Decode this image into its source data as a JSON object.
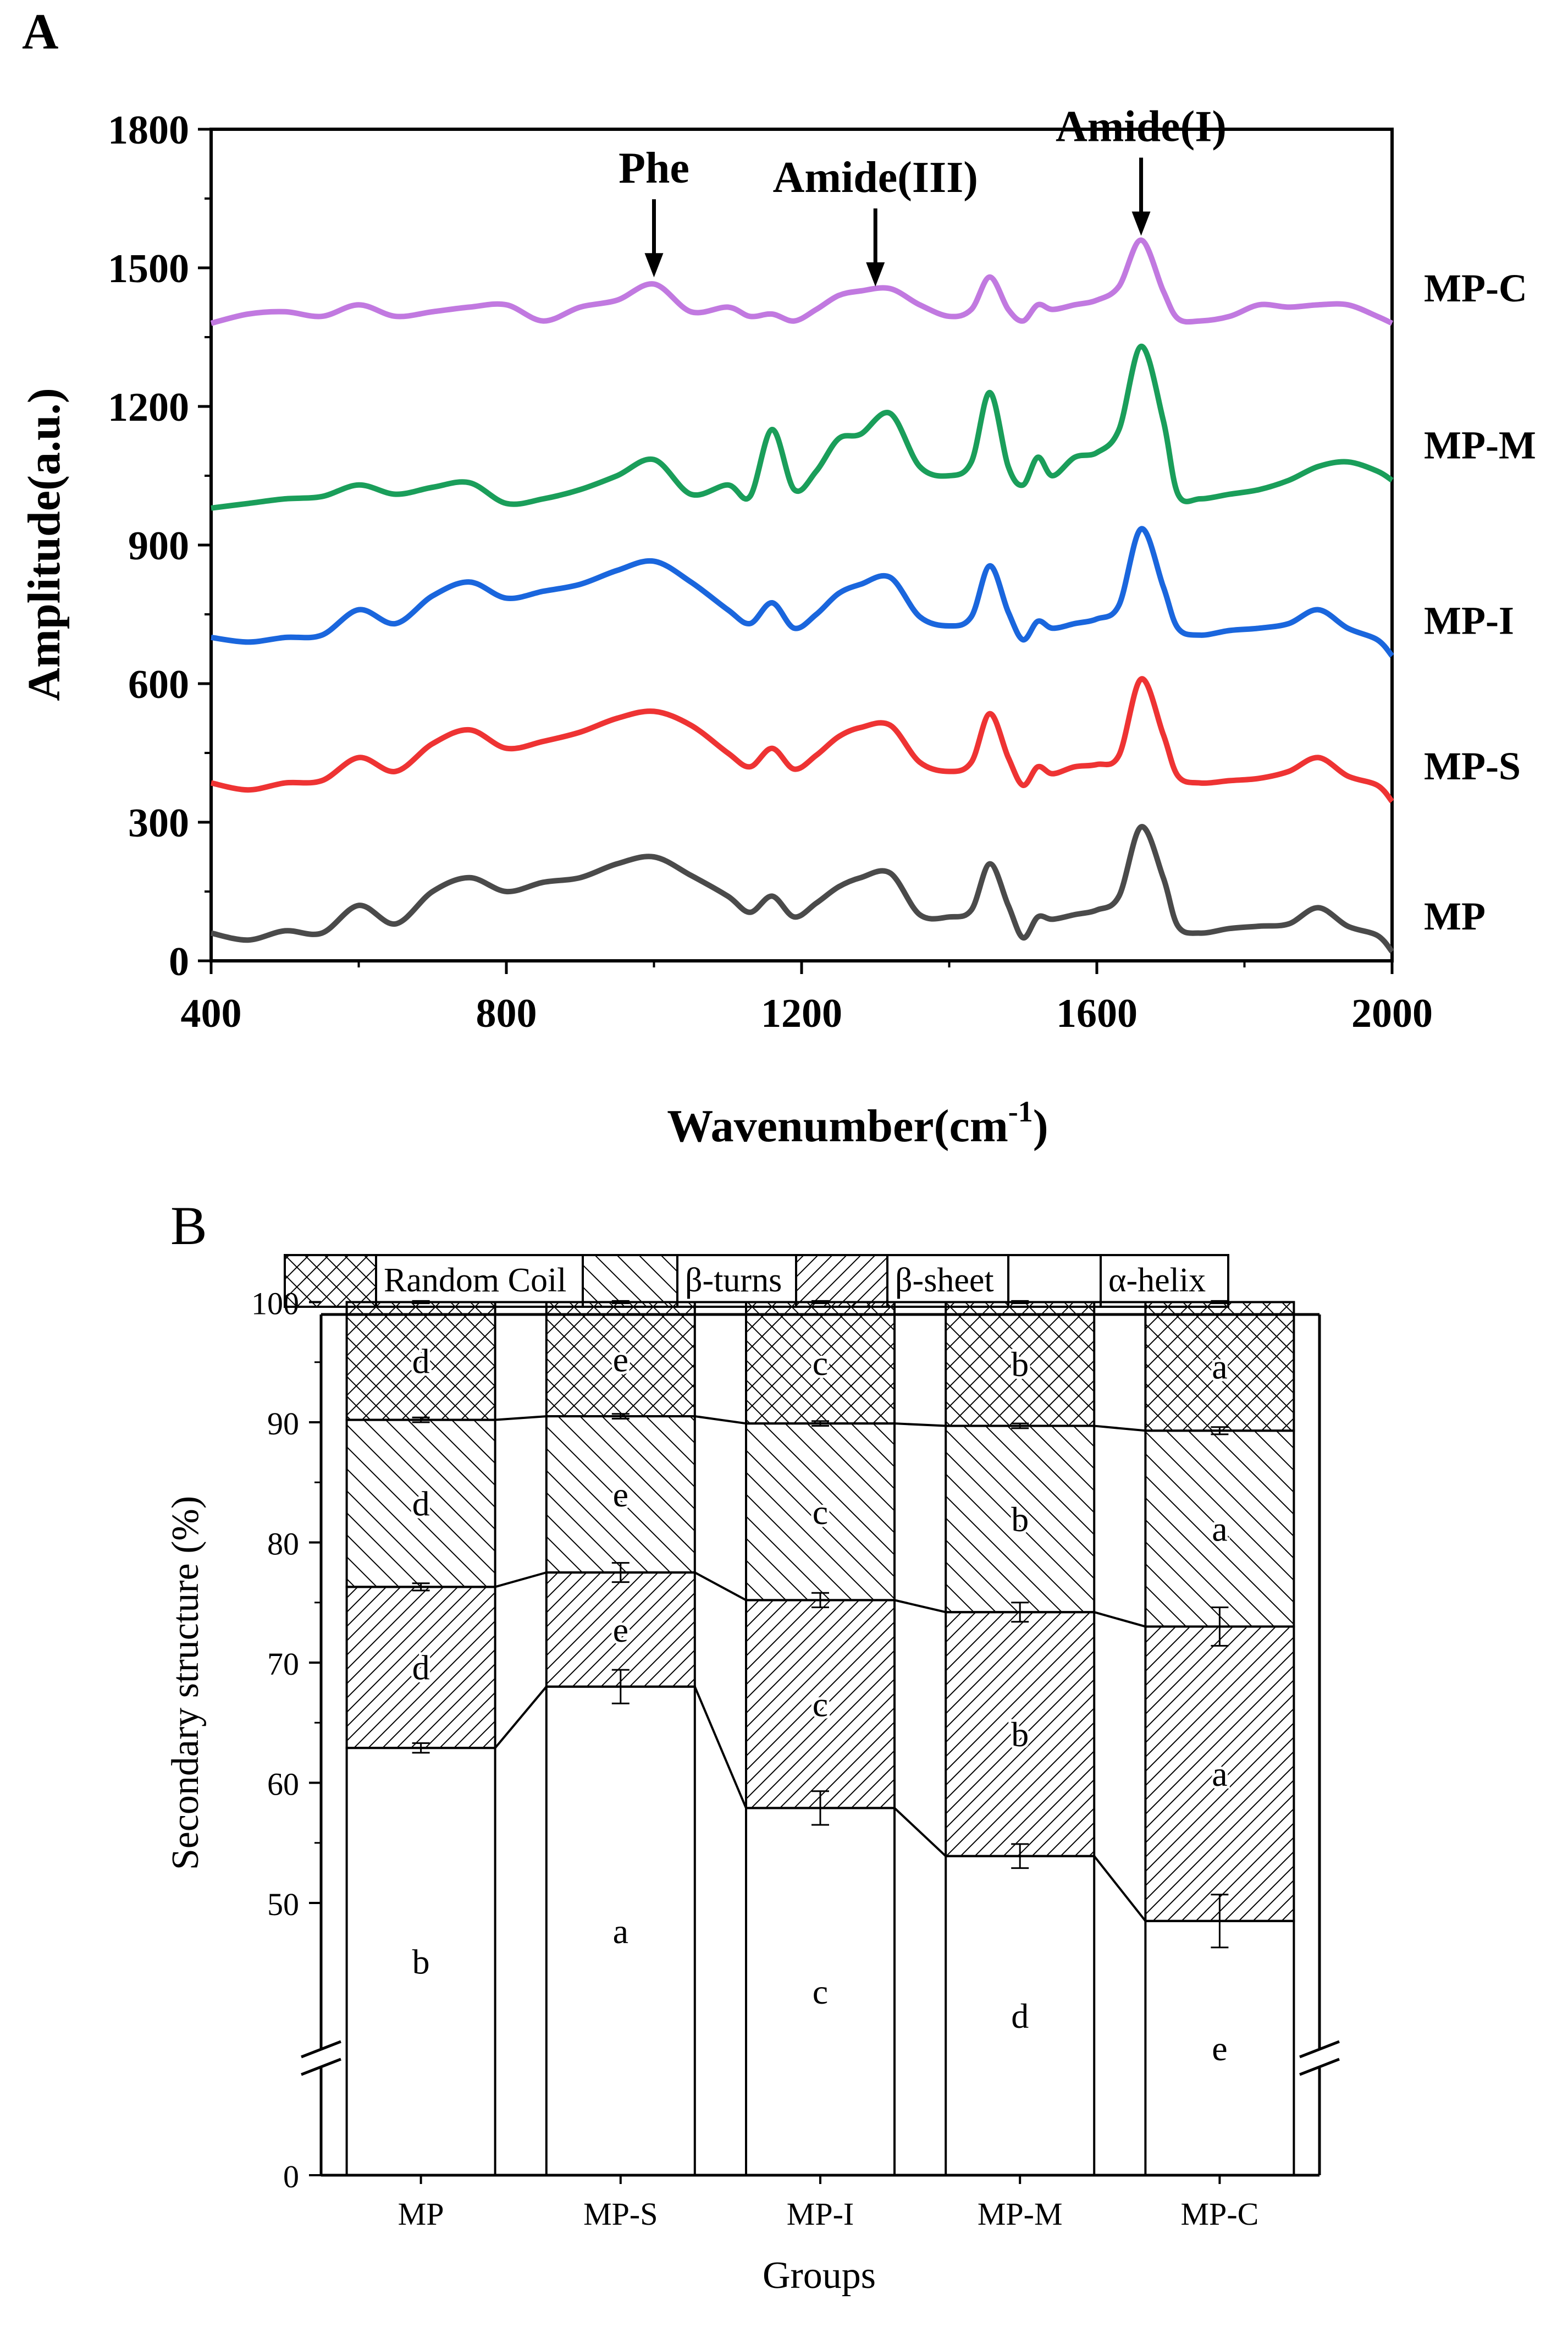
{
  "chart_data": [
    {
      "panel": "A",
      "type": "line",
      "xlabel": "Wavenumber(cm",
      "xlabel_sup": "-1",
      "xlabel_close": ")",
      "ylabel": "Amplitude(a.u.)",
      "xlim": [
        400,
        2000
      ],
      "ylim": [
        0,
        1800
      ],
      "xticks": [
        "400",
        "800",
        "1200",
        "1600",
        "2000"
      ],
      "yticks": [
        "0",
        "300",
        "600",
        "900",
        "1200",
        "1500",
        "1800"
      ],
      "annotations": [
        {
          "label": "Phe",
          "x": 1000,
          "y": 1470
        },
        {
          "label": "Amide(III)",
          "x": 1300,
          "y": 1450
        },
        {
          "label": "Amide(I)",
          "x": 1660,
          "y": 1560
        }
      ],
      "x": [
        400,
        450,
        500,
        550,
        600,
        650,
        700,
        750,
        800,
        850,
        900,
        950,
        1000,
        1050,
        1100,
        1130,
        1160,
        1190,
        1220,
        1250,
        1280,
        1320,
        1360,
        1400,
        1430,
        1455,
        1480,
        1500,
        1520,
        1540,
        1570,
        1600,
        1630,
        1660,
        1690,
        1710,
        1740,
        1780,
        1820,
        1860,
        1900,
        1940,
        1980,
        2000
      ],
      "series": [
        {
          "name": "MP",
          "color": "#4a4a4a",
          "values": [
            60,
            45,
            65,
            60,
            120,
            80,
            150,
            180,
            150,
            170,
            180,
            210,
            225,
            185,
            140,
            105,
            140,
            95,
            125,
            160,
            180,
            190,
            100,
            95,
            110,
            210,
            120,
            50,
            95,
            90,
            100,
            110,
            140,
            290,
            180,
            75,
            60,
            70,
            75,
            80,
            115,
            75,
            55,
            20
          ]
        },
        {
          "name": "MP-S",
          "color": "#ee3333",
          "values": [
            385,
            370,
            385,
            390,
            440,
            410,
            470,
            500,
            460,
            475,
            495,
            525,
            540,
            510,
            450,
            420,
            460,
            415,
            445,
            485,
            505,
            510,
            430,
            410,
            430,
            535,
            440,
            380,
            420,
            405,
            420,
            425,
            445,
            610,
            490,
            400,
            385,
            390,
            395,
            410,
            440,
            400,
            380,
            345
          ]
        },
        {
          "name": "MP-I",
          "color": "#1a66dd",
          "values": [
            700,
            690,
            700,
            705,
            760,
            730,
            790,
            820,
            785,
            800,
            815,
            845,
            865,
            820,
            760,
            730,
            775,
            720,
            750,
            795,
            815,
            830,
            745,
            725,
            745,
            855,
            755,
            695,
            735,
            720,
            730,
            740,
            770,
            935,
            810,
            720,
            705,
            715,
            720,
            730,
            760,
            720,
            695,
            660
          ]
        },
        {
          "name": "MP-M",
          "color": "#1a9e5a",
          "values": [
            980,
            990,
            1000,
            1005,
            1030,
            1010,
            1025,
            1035,
            990,
            1000,
            1020,
            1050,
            1085,
            1010,
            1030,
            1005,
            1150,
            1020,
            1060,
            1130,
            1140,
            1185,
            1070,
            1050,
            1080,
            1230,
            1070,
            1030,
            1090,
            1050,
            1090,
            1100,
            1150,
            1330,
            1170,
            1010,
            1000,
            1010,
            1020,
            1040,
            1070,
            1080,
            1060,
            1040
          ]
        },
        {
          "name": "MP-C",
          "color": "#c179e0",
          "values": [
            1380,
            1400,
            1405,
            1395,
            1420,
            1395,
            1405,
            1415,
            1420,
            1385,
            1415,
            1430,
            1465,
            1405,
            1415,
            1395,
            1400,
            1385,
            1410,
            1440,
            1450,
            1455,
            1420,
            1395,
            1410,
            1480,
            1410,
            1385,
            1420,
            1410,
            1420,
            1430,
            1460,
            1560,
            1450,
            1390,
            1385,
            1395,
            1420,
            1415,
            1420,
            1420,
            1395,
            1380
          ]
        }
      ]
    },
    {
      "panel": "B",
      "type": "bar",
      "stacked": true,
      "xlabel": "Groups",
      "ylabel": "Secondary structure (%)",
      "ylim": [
        0,
        100
      ],
      "axis_break": [
        40,
        50
      ],
      "yticks": [
        "0",
        "50",
        "60",
        "70",
        "80",
        "90",
        "100"
      ],
      "categories": [
        "MP",
        "MP-S",
        "MP-I",
        "MP-M",
        "MP-C"
      ],
      "legend": [
        "Random Coil",
        "β-turns",
        "β-sheet",
        "α-helix"
      ],
      "series": [
        {
          "name": "α-helix",
          "values": [
            62.9,
            68.0,
            57.9,
            53.9,
            48.5
          ],
          "errors": [
            0.4,
            1.4,
            1.4,
            1.0,
            2.2
          ],
          "letters": [
            "b",
            "a",
            "c",
            "d",
            "e"
          ]
        },
        {
          "name": "β-sheet",
          "values": [
            13.4,
            9.5,
            17.3,
            20.3,
            24.5
          ],
          "errors": [
            0.3,
            0.8,
            0.6,
            0.8,
            1.6
          ],
          "letters": [
            "d",
            "e",
            "c",
            "b",
            "a"
          ]
        },
        {
          "name": "β-turns",
          "values": [
            13.9,
            13.0,
            14.7,
            15.5,
            16.3
          ],
          "errors": [
            0.2,
            0.2,
            0.2,
            0.2,
            0.3
          ],
          "letters": [
            "d",
            "e",
            "c",
            "b",
            "a"
          ]
        },
        {
          "name": "Random Coil",
          "values": [
            9.8,
            9.5,
            10.1,
            10.3,
            10.7
          ],
          "errors": [
            0.1,
            0.1,
            0.1,
            0.1,
            0.1
          ],
          "letters": [
            "d",
            "e",
            "c",
            "b",
            "a"
          ]
        }
      ]
    }
  ],
  "panel_labels": [
    "A",
    "B"
  ]
}
